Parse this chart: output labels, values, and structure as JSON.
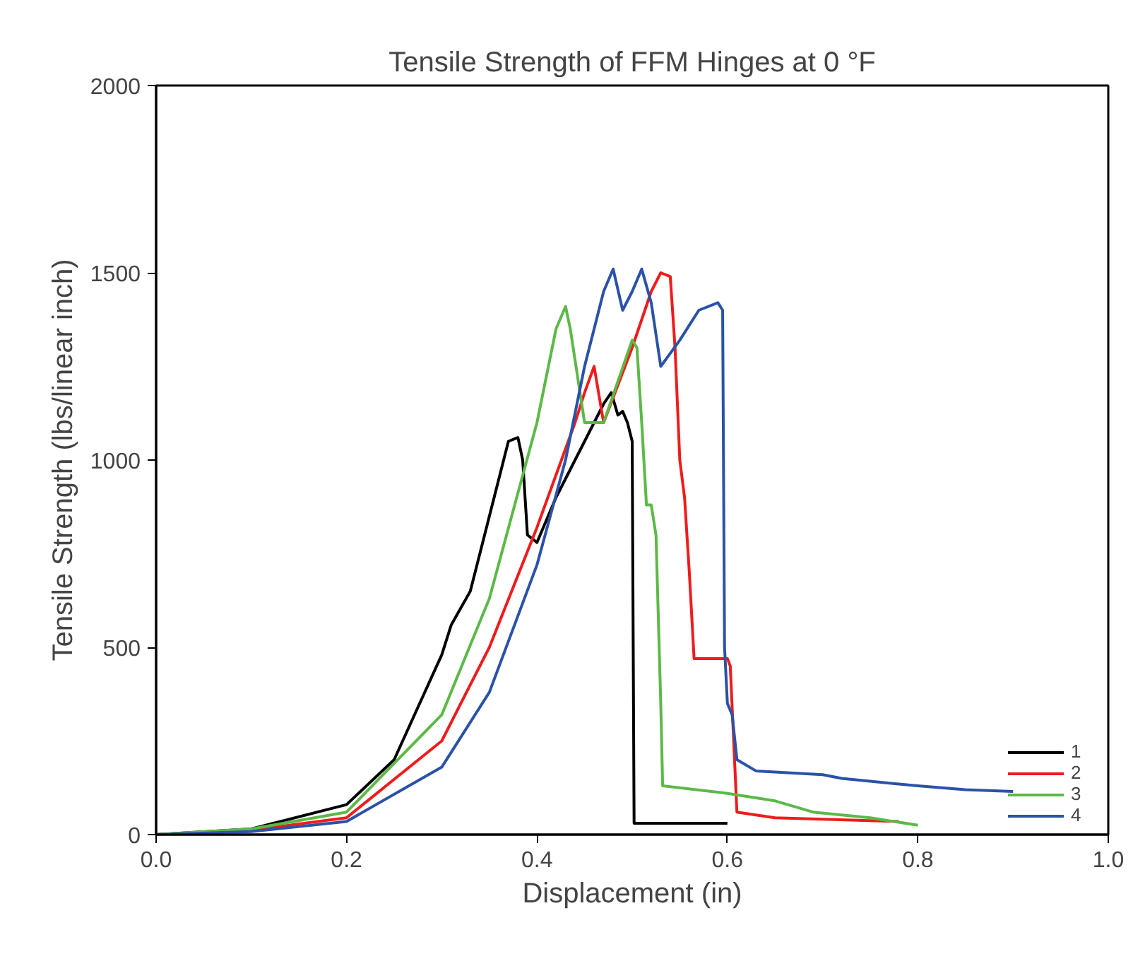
{
  "chart_data": {
    "type": "line",
    "title": "Tensile Strength of FFM Hinges at 0 °F",
    "xlabel": "Displacement (in)",
    "ylabel": "Tensile Strength (lbs/linear inch)",
    "xlim": [
      0,
      1.0
    ],
    "ylim": [
      0,
      2000
    ],
    "xticks": [
      {
        "value": 0,
        "label": "0.0"
      },
      {
        "value": 0.2,
        "label": "0.2"
      },
      {
        "value": 0.4,
        "label": "0.4"
      },
      {
        "value": 0.6,
        "label": "0.6"
      },
      {
        "value": 0.8,
        "label": "0.8"
      },
      {
        "value": 1.0,
        "label": "1.0"
      }
    ],
    "yticks": [
      0,
      500,
      1000,
      1500,
      2000
    ],
    "grid": false,
    "legend": "bottom right",
    "line_style": "solid",
    "series": [
      {
        "name": "1",
        "color": "#000000",
        "x": [
          0,
          0.1,
          0.2,
          0.25,
          0.3,
          0.31,
          0.33,
          0.35,
          0.36,
          0.37,
          0.38,
          0.385,
          0.39,
          0.4,
          0.42,
          0.45,
          0.47,
          0.478,
          0.485,
          0.49,
          0.495,
          0.5,
          0.502,
          0.6
        ],
        "values": [
          0,
          15,
          80,
          200,
          480,
          560,
          650,
          850,
          950,
          1050,
          1060,
          1000,
          800,
          780,
          900,
          1050,
          1150,
          1180,
          1120,
          1130,
          1100,
          1050,
          30,
          30
        ]
      },
      {
        "name": "2",
        "color": "#ee1c1c",
        "x": [
          0,
          0.1,
          0.2,
          0.3,
          0.35,
          0.4,
          0.44,
          0.45,
          0.46,
          0.47,
          0.5,
          0.52,
          0.53,
          0.54,
          0.545,
          0.55,
          0.555,
          0.56,
          0.565,
          0.58,
          0.6,
          0.603,
          0.61,
          0.65,
          0.78
        ],
        "values": [
          0,
          12,
          45,
          250,
          500,
          820,
          1100,
          1180,
          1250,
          1100,
          1300,
          1450,
          1500,
          1490,
          1300,
          1000,
          900,
          700,
          470,
          470,
          470,
          450,
          60,
          45,
          35
        ]
      },
      {
        "name": "3",
        "color": "#5cb947",
        "x": [
          0,
          0.1,
          0.2,
          0.3,
          0.35,
          0.4,
          0.42,
          0.43,
          0.435,
          0.45,
          0.47,
          0.5,
          0.505,
          0.51,
          0.515,
          0.52,
          0.525,
          0.53,
          0.532,
          0.6,
          0.65,
          0.69,
          0.75,
          0.8
        ],
        "values": [
          0,
          15,
          60,
          320,
          630,
          1100,
          1350,
          1410,
          1350,
          1100,
          1100,
          1320,
          1300,
          1100,
          880,
          880,
          800,
          350,
          130,
          110,
          90,
          60,
          45,
          25
        ]
      },
      {
        "name": "4",
        "color": "#2a52a8",
        "x": [
          0,
          0.1,
          0.2,
          0.3,
          0.35,
          0.4,
          0.43,
          0.45,
          0.47,
          0.48,
          0.49,
          0.5,
          0.51,
          0.52,
          0.53,
          0.55,
          0.57,
          0.59,
          0.595,
          0.597,
          0.6,
          0.605,
          0.61,
          0.63,
          0.7,
          0.72,
          0.8,
          0.85,
          0.9
        ],
        "values": [
          0,
          8,
          35,
          180,
          380,
          720,
          1000,
          1250,
          1450,
          1510,
          1400,
          1450,
          1510,
          1420,
          1250,
          1320,
          1400,
          1420,
          1400,
          500,
          350,
          320,
          200,
          170,
          160,
          150,
          130,
          120,
          115
        ]
      }
    ]
  }
}
